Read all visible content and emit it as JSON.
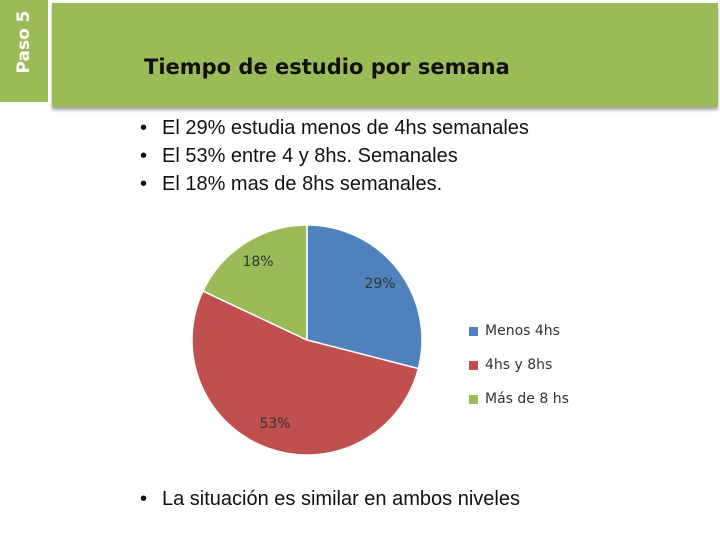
{
  "side_tab": {
    "label": "Paso 5"
  },
  "title": "Tiempo de estudio por semana",
  "bullets": [
    "El 29% estudia menos de 4hs semanales",
    "El 53% entre 4 y 8hs. Semanales",
    "El 18% mas de 8hs semanales."
  ],
  "chart_data": {
    "type": "pie",
    "categories": [
      "Menos 4hs",
      "4hs y 8hs",
      "Más de 8 hs"
    ],
    "values": [
      29,
      53,
      18
    ],
    "labels": [
      "29%",
      "53%",
      "18%"
    ],
    "colors": [
      "#4F81BD",
      "#C0504D",
      "#9BBB59"
    ],
    "legend_position": "right"
  },
  "footer": "La situación es similar en ambos niveles",
  "colors": {
    "accent": "#9BBB59"
  }
}
